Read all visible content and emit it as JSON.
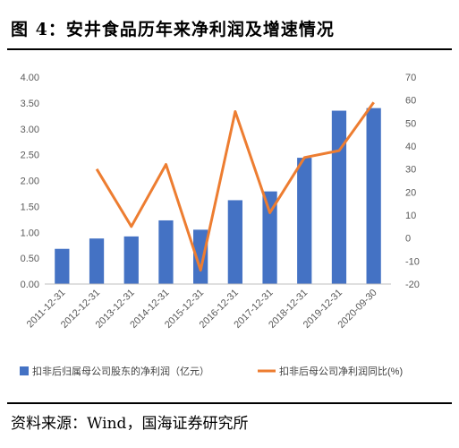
{
  "figure": {
    "title": "图 4：安井食品历年来净利润及增速情况",
    "source": "资料来源：Wind，国海证券研究所"
  },
  "chart_data": {
    "type": "bar",
    "categories": [
      "2011-12-31",
      "2012-12-31",
      "2013-12-31",
      "2014-12-31",
      "2015-12-31",
      "2016-12-31",
      "2017-12-31",
      "2018-12-31",
      "2019-12-31",
      "2020-09-30"
    ],
    "series": [
      {
        "name": "扣非后归属母公司股东的净利润（亿元）",
        "type": "bar",
        "axis": "left",
        "color": "#4472C4",
        "values": [
          0.68,
          0.88,
          0.92,
          1.23,
          1.05,
          1.62,
          1.79,
          2.44,
          3.35,
          3.4
        ]
      },
      {
        "name": "扣非后母公司净利润同比(%)",
        "type": "line",
        "axis": "right",
        "color": "#ED7D31",
        "values": [
          null,
          30,
          5,
          32,
          -14,
          55,
          11,
          35,
          38,
          59
        ]
      }
    ],
    "y_left": {
      "min": 0,
      "max": 4,
      "ticks": [
        "0.00",
        "0.50",
        "1.00",
        "1.50",
        "2.00",
        "2.50",
        "3.00",
        "3.50",
        "4.00"
      ]
    },
    "y_right": {
      "min": -20,
      "max": 70,
      "ticks": [
        "-20",
        "-10",
        "0",
        "10",
        "20",
        "30",
        "40",
        "50",
        "60",
        "70"
      ]
    },
    "grid": false,
    "legend_position": "bottom"
  }
}
